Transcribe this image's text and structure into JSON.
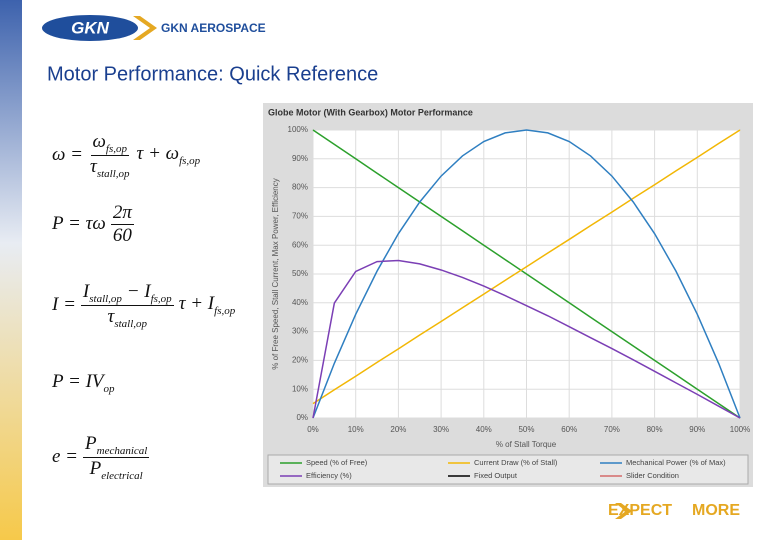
{
  "header": {
    "logo_text": "GKN AEROSPACE",
    "title": "Motor Performance: Quick Reference"
  },
  "formulas": [
    {
      "lhs": [
        [
          "ω ="
        ]
      ],
      "num": [
        [
          "ω",
          "fs,op"
        ]
      ],
      "den": [
        [
          "τ",
          "stall,op"
        ]
      ],
      "tail": [
        [
          "τ + ω",
          "fs,op"
        ]
      ]
    },
    {
      "lhs": [
        [
          "P = τω"
        ]
      ],
      "num": [
        [
          "2π"
        ]
      ],
      "den": [
        [
          "60"
        ]
      ],
      "tail": []
    },
    {
      "lhs": [
        [
          "I ="
        ]
      ],
      "num": [
        [
          "I",
          "stall,op"
        ],
        [
          " − I",
          "fs,op"
        ]
      ],
      "den": [
        [
          "τ",
          "stall,op"
        ]
      ],
      "tail": [
        [
          "τ + I",
          "fs,op"
        ]
      ]
    },
    {
      "lhs": [
        [
          "P = IV",
          "op"
        ]
      ],
      "num": [],
      "den": [],
      "tail": []
    },
    {
      "lhs": [
        [
          "e ="
        ]
      ],
      "num": [
        [
          "P",
          "mechanical"
        ]
      ],
      "den": [
        [
          "P",
          "electrical"
        ]
      ],
      "tail": []
    }
  ],
  "footer": [
    "EXPECT",
    "MORE"
  ],
  "chart_data": {
    "type": "line",
    "title": "Globe Motor (With Gearbox) Motor Performance",
    "x_label": "% of Stall Torque",
    "y_label": "% of Free Speed, Stall Current, Max Power, Efficiency",
    "x": [
      0,
      5,
      10,
      15,
      20,
      25,
      30,
      35,
      40,
      45,
      50,
      55,
      60,
      65,
      70,
      75,
      80,
      85,
      90,
      95,
      100
    ],
    "series": [
      {
        "name": "Speed (% of Free)",
        "color": "#2ca02c",
        "values": [
          100,
          95,
          90,
          85,
          80,
          75,
          70,
          65,
          60,
          55,
          50,
          45,
          40,
          35,
          30,
          25,
          20,
          15,
          10,
          5,
          0
        ]
      },
      {
        "name": "Current Draw (% of Stall)",
        "color": "#f2b705",
        "values": [
          5,
          9.8,
          14.5,
          19.3,
          24,
          28.8,
          33.5,
          38.3,
          43,
          47.8,
          52.5,
          57.3,
          62,
          66.8,
          71.5,
          76.3,
          81,
          85.8,
          90.5,
          95.3,
          100
        ]
      },
      {
        "name": "Mechanical Power (% of Max)",
        "color": "#2f7fc1",
        "values": [
          0,
          19,
          36,
          51,
          64,
          75,
          84,
          91,
          96,
          99,
          100,
          99,
          96,
          91,
          84,
          75,
          64,
          51,
          36,
          19,
          0
        ]
      },
      {
        "name": "Efficiency (%)",
        "color": "#7b3fb5",
        "values": [
          0,
          39.9,
          50.9,
          54.3,
          54.7,
          53.5,
          51.4,
          48.8,
          45.8,
          42.5,
          39,
          35.5,
          31.7,
          27.9,
          24.1,
          20.2,
          16.2,
          12.2,
          8.2,
          4.1,
          0
        ]
      }
    ],
    "legend_only": [
      {
        "name": "Fixed Output",
        "color": "#000000"
      },
      {
        "name": "Slider Condition",
        "color": "#d46a6a"
      }
    ],
    "xlim": [
      0,
      100
    ],
    "ylim": [
      0,
      100
    ],
    "xticks": [
      {
        "value": 0,
        "label": "0%"
      },
      {
        "value": 10,
        "label": "10%"
      },
      {
        "value": 20,
        "label": "20%"
      },
      {
        "value": 30,
        "label": "30%"
      },
      {
        "value": 40,
        "label": "40%"
      },
      {
        "value": 50,
        "label": "50%"
      },
      {
        "value": 60,
        "label": "60%"
      },
      {
        "value": 70,
        "label": "70%"
      },
      {
        "value": 80,
        "label": "80%"
      },
      {
        "value": 90,
        "label": "90%"
      },
      {
        "value": 100,
        "label": "100%"
      }
    ],
    "yticks": [
      {
        "value": 0,
        "label": "0%"
      },
      {
        "value": 10,
        "label": "10%"
      },
      {
        "value": 20,
        "label": "20%"
      },
      {
        "value": 30,
        "label": "30%"
      },
      {
        "value": 40,
        "label": "40%"
      },
      {
        "value": 50,
        "label": "50%"
      },
      {
        "value": 60,
        "label": "60%"
      },
      {
        "value": 70,
        "label": "70%"
      },
      {
        "value": 80,
        "label": "80%"
      },
      {
        "value": 90,
        "label": "90%"
      },
      {
        "value": 100,
        "label": "100%"
      }
    ],
    "grid": true
  }
}
